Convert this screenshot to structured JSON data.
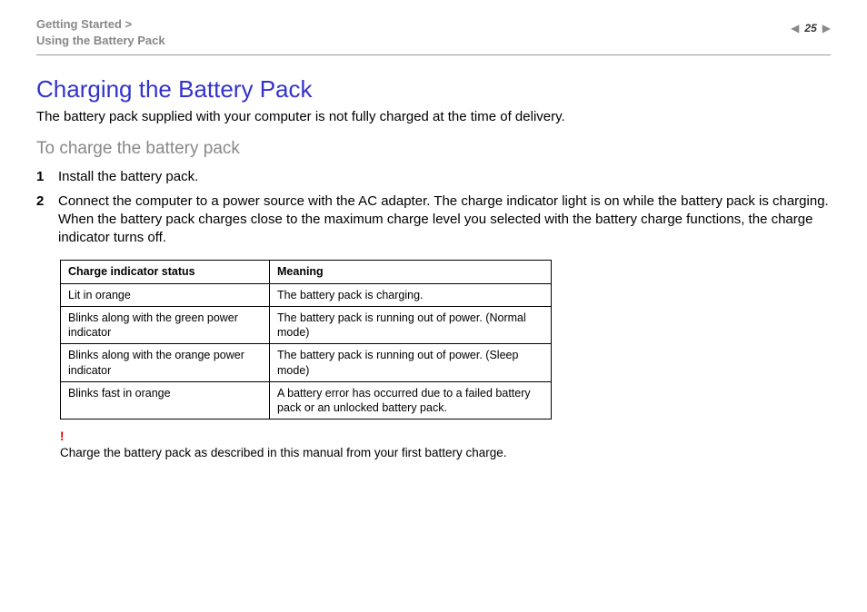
{
  "breadcrumb": {
    "line1": "Getting Started >",
    "line2": "Using the Battery Pack"
  },
  "pager": {
    "page_number": "25",
    "prev_glyph": "◀",
    "next_glyph": "▶"
  },
  "heading": "Charging the Battery Pack",
  "intro": "The battery pack supplied with your computer is not fully charged at the time of delivery.",
  "subheading": "To charge the battery pack",
  "steps": [
    {
      "num": "1",
      "body": "Install the battery pack."
    },
    {
      "num": "2",
      "body": "Connect the computer to a power source with the AC adapter.\nThe charge indicator light is on while the battery pack is charging. When the battery pack charges close to the maximum charge level you selected with the battery charge functions, the charge indicator turns off."
    }
  ],
  "table": {
    "columns": [
      "Charge indicator status",
      "Meaning"
    ],
    "rows": [
      [
        "Lit in orange",
        "The battery pack is charging."
      ],
      [
        "Blinks along with the green power indicator",
        "The battery pack is running out of power. (Normal mode)"
      ],
      [
        "Blinks along with the orange power indicator",
        "The battery pack is running out of power. (Sleep mode)"
      ],
      [
        "Blinks fast in orange",
        "A battery error has occurred due to a failed battery pack or an unlocked battery pack."
      ]
    ]
  },
  "warning": {
    "mark": "!",
    "text": "Charge the battery pack as described in this manual from your first battery charge."
  },
  "colors": {
    "heading": "#3333cc",
    "muted": "#888888",
    "text": "#000000",
    "warn": "#cc0000",
    "rule": "#999999"
  }
}
